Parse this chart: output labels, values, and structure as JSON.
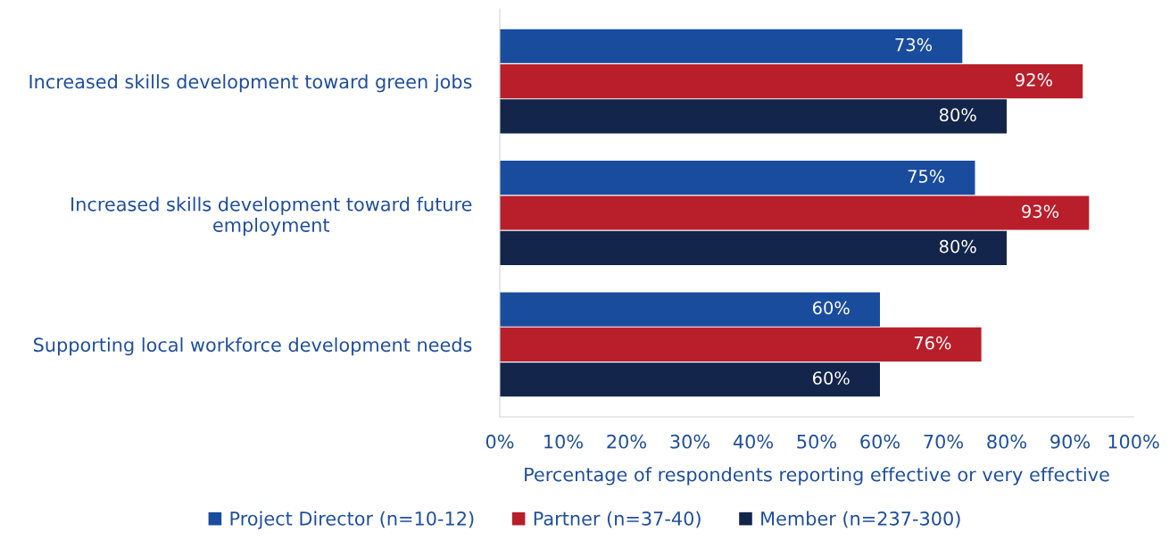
{
  "chart_data": {
    "type": "bar",
    "orientation": "horizontal",
    "categories": [
      "Increased skills development toward green jobs",
      "Increased skills development toward future employment",
      "Supporting local workforce development needs"
    ],
    "series": [
      {
        "name": "Project Director (n=10-12)",
        "color": "#1a4c9e",
        "values": [
          73,
          75,
          60
        ],
        "value_labels": [
          "73%",
          "75%",
          "60%"
        ]
      },
      {
        "name": "Partner (n=37-40)",
        "color": "#b81f2b",
        "values": [
          92,
          93,
          76
        ],
        "value_labels": [
          "92%",
          "93%",
          "76%"
        ]
      },
      {
        "name": "Member (n=237-300)",
        "color": "#13254a",
        "values": [
          80,
          80,
          60
        ],
        "value_labels": [
          "80%",
          "80%",
          "60%"
        ]
      }
    ],
    "xlabel": "Percentage of respondents reporting effective or very effective",
    "xlim": [
      0,
      100
    ],
    "xticks": [
      {
        "value": 0,
        "label": "0%"
      },
      {
        "value": 10,
        "label": "10%"
      },
      {
        "value": 20,
        "label": "20%"
      },
      {
        "value": 30,
        "label": "30%"
      },
      {
        "value": 40,
        "label": "40%"
      },
      {
        "value": 50,
        "label": "50%"
      },
      {
        "value": 60,
        "label": "60%"
      },
      {
        "value": 70,
        "label": "70%"
      },
      {
        "value": 80,
        "label": "80%"
      },
      {
        "value": 90,
        "label": "90%"
      },
      {
        "value": 100,
        "label": "100%"
      }
    ],
    "grid": false,
    "legend": "bottom"
  }
}
